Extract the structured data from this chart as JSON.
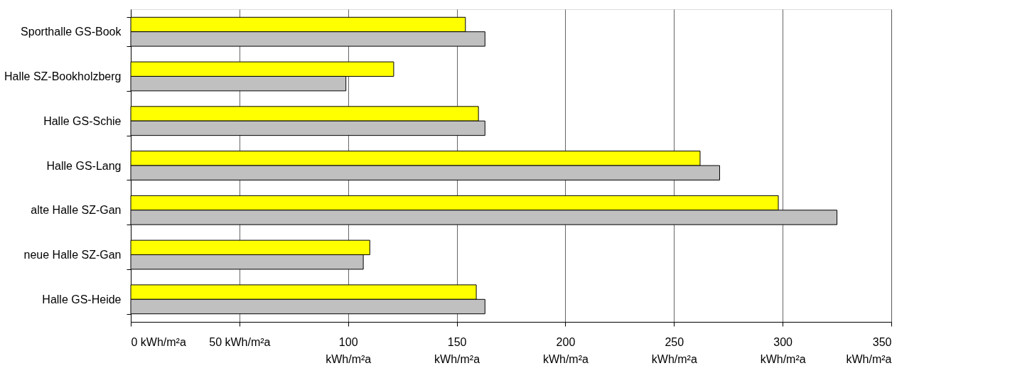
{
  "chart_data": {
    "type": "bar",
    "orientation": "horizontal",
    "categories": [
      "Sporthalle GS-Book",
      "Halle SZ-Bookholzberg",
      "Halle GS-Schie",
      "Halle GS-Lang",
      "alte Halle SZ-Gan",
      "neue Halle SZ-Gan",
      "Halle GS-Heide"
    ],
    "series": [
      {
        "color": "#ffff00",
        "values": [
          154,
          121,
          160,
          262,
          298,
          110,
          159
        ]
      },
      {
        "color": "#c0c0c0",
        "values": [
          163,
          99,
          163,
          271,
          325,
          107,
          163
        ]
      }
    ],
    "xlim": [
      0,
      350
    ],
    "xticks": [
      {
        "value": 0,
        "label": "0 kWh/m²a"
      },
      {
        "value": 50,
        "label": "50 kWh/m²a"
      },
      {
        "value": 100,
        "label": "100 kWh/m²a"
      },
      {
        "value": 150,
        "label": "150 kWh/m²a"
      },
      {
        "value": 200,
        "label": "200 kWh/m²a"
      },
      {
        "value": 250,
        "label": "250 kWh/m²a"
      },
      {
        "value": 300,
        "label": "300 kWh/m²a"
      },
      {
        "value": 350,
        "label": "350 kWh/m²a"
      }
    ],
    "grid": "x",
    "legend": false
  }
}
